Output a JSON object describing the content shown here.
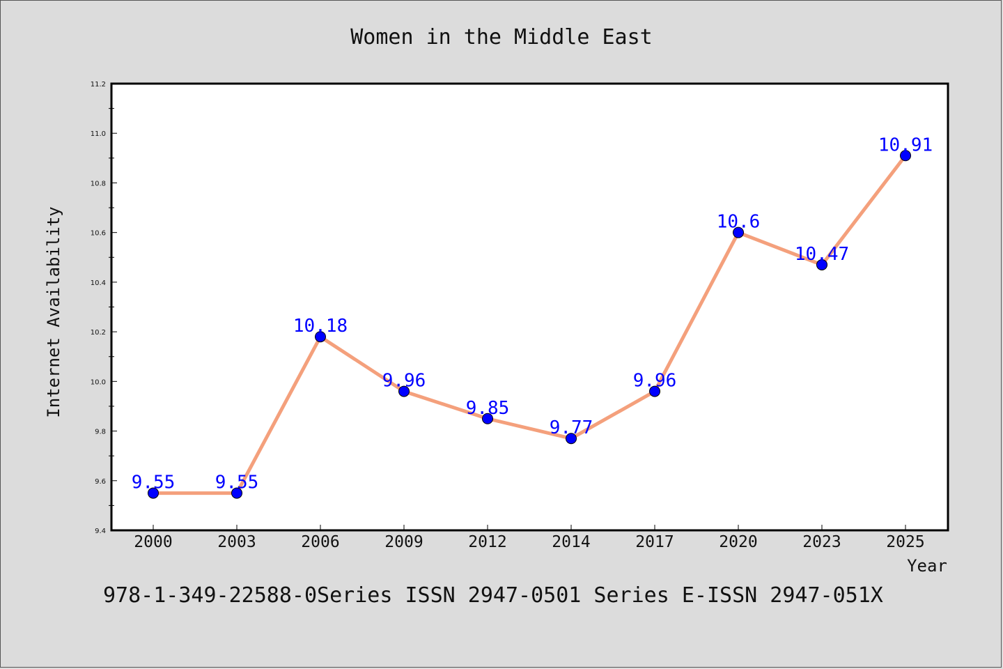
{
  "chart_data": {
    "type": "line",
    "title": "Women in the Middle East",
    "xlabel": "Year",
    "ylabel": "Internet Availability",
    "categories": [
      "2000",
      "2003",
      "2006",
      "2009",
      "2012",
      "2014",
      "2017",
      "2020",
      "2023",
      "2025"
    ],
    "values": [
      9.55,
      9.55,
      10.18,
      9.96,
      9.85,
      9.77,
      9.96,
      10.6,
      10.47,
      10.91
    ],
    "data_labels": [
      "9.55",
      "9.55",
      "10.18",
      "9.96",
      "9.85",
      "9.77",
      "9.96",
      "10.6",
      "10.47",
      "10.91"
    ],
    "ylim": [
      9.4,
      11.2
    ],
    "yticks": [
      "9.4",
      "9.6",
      "9.8",
      "10.0",
      "10.2",
      "10.4",
      "10.6",
      "10.8",
      "11.0",
      "11.2"
    ],
    "grid": false,
    "line_color": "#f4a07c",
    "marker_color": "#0000ff",
    "label_color": "#0000ff"
  },
  "footer": {
    "text": "978-1-349-22588-0Series ISSN 2947-0501 Series E-ISSN 2947-051X"
  }
}
